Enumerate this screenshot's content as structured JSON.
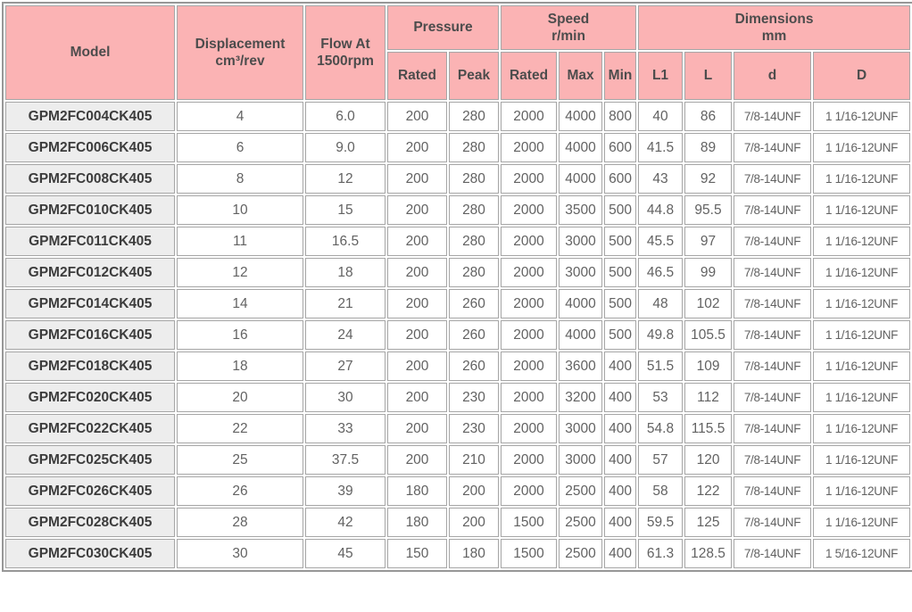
{
  "colors": {
    "header_bg": "#FBB3B4",
    "model_column_bg": "#EDEDED",
    "grid_line": "#A6A6A6",
    "outer_border": "#979797",
    "header_text": "#4C4C4C",
    "model_text": "#3C3C3C",
    "cell_text": "#626262"
  },
  "table": {
    "header": {
      "model": "Model",
      "displacement": {
        "line1": "Displacement",
        "line2": "cm³/rev"
      },
      "flow": {
        "line1": "Flow At",
        "line2": "1500rpm"
      },
      "pressure": {
        "label": "Pressure",
        "sub_rated": "Rated",
        "sub_peak": "Peak"
      },
      "speed": {
        "line1": "Speed",
        "line2": "r/min",
        "sub_rated": "Rated",
        "sub_max": "Max",
        "sub_min": "Min"
      },
      "dimensions": {
        "line1": "Dimensions",
        "line2": "mm",
        "sub_l1": "L1",
        "sub_l": "L",
        "sub_d": "d",
        "sub_D": "D"
      }
    },
    "column_keys": [
      "model",
      "displacement",
      "flow",
      "pressure-rated",
      "pressure-peak",
      "speed-rated",
      "speed-max",
      "speed-min",
      "dim-l1",
      "dim-l",
      "dim-d",
      "dim-D"
    ],
    "rows": [
      [
        "GPM2FC004CK405",
        "4",
        "6.0",
        "200",
        "280",
        "2000",
        "4000",
        "800",
        "40",
        "86",
        "7/8-14UNF",
        "1 1/16-12UNF"
      ],
      [
        "GPM2FC006CK405",
        "6",
        "9.0",
        "200",
        "280",
        "2000",
        "4000",
        "600",
        "41.5",
        "89",
        "7/8-14UNF",
        "1 1/16-12UNF"
      ],
      [
        "GPM2FC008CK405",
        "8",
        "12",
        "200",
        "280",
        "2000",
        "4000",
        "600",
        "43",
        "92",
        "7/8-14UNF",
        "1 1/16-12UNF"
      ],
      [
        "GPM2FC010CK405",
        "10",
        "15",
        "200",
        "280",
        "2000",
        "3500",
        "500",
        "44.8",
        "95.5",
        "7/8-14UNF",
        "1 1/16-12UNF"
      ],
      [
        "GPM2FC011CK405",
        "11",
        "16.5",
        "200",
        "280",
        "2000",
        "3000",
        "500",
        "45.5",
        "97",
        "7/8-14UNF",
        "1 1/16-12UNF"
      ],
      [
        "GPM2FC012CK405",
        "12",
        "18",
        "200",
        "280",
        "2000",
        "3000",
        "500",
        "46.5",
        "99",
        "7/8-14UNF",
        "1 1/16-12UNF"
      ],
      [
        "GPM2FC014CK405",
        "14",
        "21",
        "200",
        "260",
        "2000",
        "4000",
        "500",
        "48",
        "102",
        "7/8-14UNF",
        "1 1/16-12UNF"
      ],
      [
        "GPM2FC016CK405",
        "16",
        "24",
        "200",
        "260",
        "2000",
        "4000",
        "500",
        "49.8",
        "105.5",
        "7/8-14UNF",
        "1 1/16-12UNF"
      ],
      [
        "GPM2FC018CK405",
        "18",
        "27",
        "200",
        "260",
        "2000",
        "3600",
        "400",
        "51.5",
        "109",
        "7/8-14UNF",
        "1 1/16-12UNF"
      ],
      [
        "GPM2FC020CK405",
        "20",
        "30",
        "200",
        "230",
        "2000",
        "3200",
        "400",
        "53",
        "112",
        "7/8-14UNF",
        "1 1/16-12UNF"
      ],
      [
        "GPM2FC022CK405",
        "22",
        "33",
        "200",
        "230",
        "2000",
        "3000",
        "400",
        "54.8",
        "115.5",
        "7/8-14UNF",
        "1 1/16-12UNF"
      ],
      [
        "GPM2FC025CK405",
        "25",
        "37.5",
        "200",
        "210",
        "2000",
        "3000",
        "400",
        "57",
        "120",
        "7/8-14UNF",
        "1 1/16-12UNF"
      ],
      [
        "GPM2FC026CK405",
        "26",
        "39",
        "180",
        "200",
        "2000",
        "2500",
        "400",
        "58",
        "122",
        "7/8-14UNF",
        "1 1/16-12UNF"
      ],
      [
        "GPM2FC028CK405",
        "28",
        "42",
        "180",
        "200",
        "1500",
        "2500",
        "400",
        "59.5",
        "125",
        "7/8-14UNF",
        "1 1/16-12UNF"
      ],
      [
        "GPM2FC030CK405",
        "30",
        "45",
        "150",
        "180",
        "1500",
        "2500",
        "400",
        "61.3",
        "128.5",
        "7/8-14UNF",
        "1 5/16-12UNF"
      ]
    ]
  }
}
